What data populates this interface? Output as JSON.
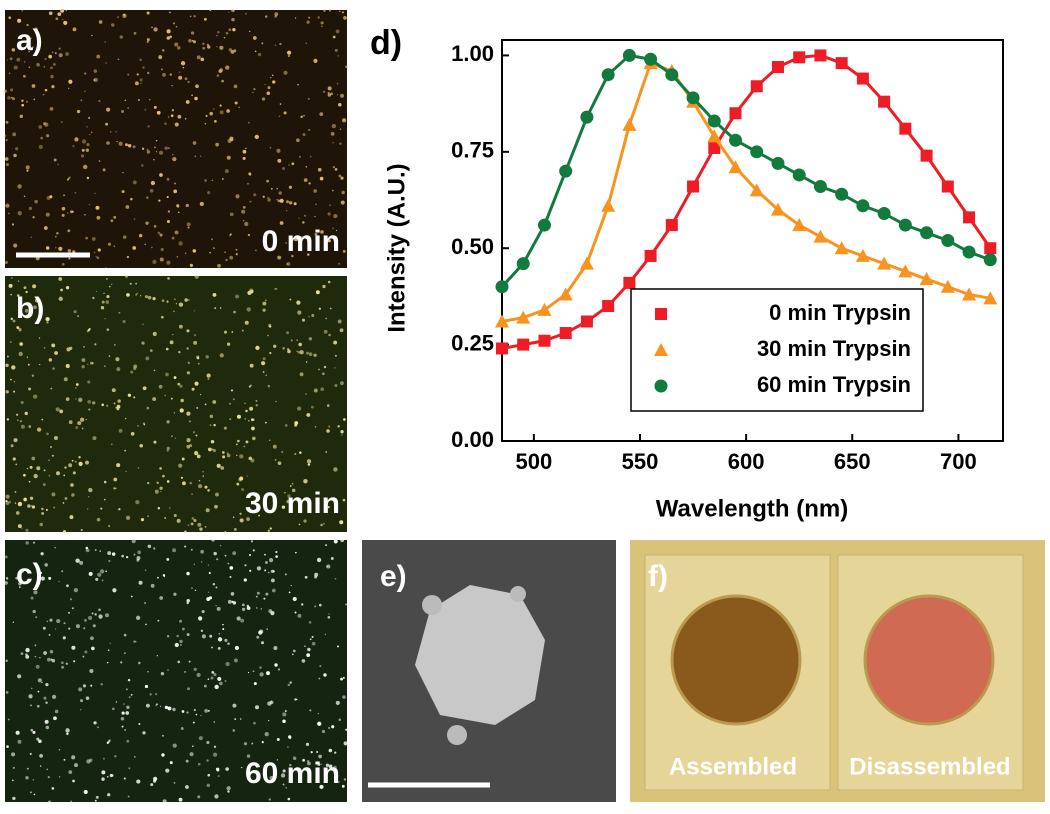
{
  "panels": {
    "a": {
      "label": "a)",
      "caption": "0 min"
    },
    "b": {
      "label": "b)",
      "caption": "30 min"
    },
    "c": {
      "label": "c)",
      "caption": "60 min"
    },
    "e": {
      "label": "e)"
    },
    "f": {
      "label": "f)",
      "left": "Assembled",
      "right": "Disassembled"
    }
  },
  "chart_data": {
    "type": "line",
    "panel_label": "d)",
    "x_label": "Wavelength (nm)",
    "y_label": "Intensity (A.U.)",
    "xlim": [
      485,
      721
    ],
    "ylim": [
      0,
      1.04
    ],
    "xticks": [
      500,
      550,
      600,
      650,
      700
    ],
    "yticks": [
      {
        "value": 0,
        "label": "0.00"
      },
      {
        "value": 0.25,
        "label": "0.25"
      },
      {
        "value": 0.5,
        "label": "0.50"
      },
      {
        "value": 0.75,
        "label": "0.75"
      },
      {
        "value": 1,
        "label": "1.00"
      }
    ],
    "legend": "lower right",
    "x": [
      485,
      495,
      505,
      515,
      525,
      535,
      545,
      555,
      565,
      575,
      585,
      595,
      605,
      615,
      625,
      635,
      645,
      655,
      665,
      675,
      685,
      695,
      705,
      715
    ],
    "series": [
      {
        "name": "0 min Trypsin",
        "color": "#ee1c25",
        "marker": "square",
        "values": [
          0.24,
          0.25,
          0.26,
          0.28,
          0.31,
          0.35,
          0.41,
          0.48,
          0.56,
          0.66,
          0.76,
          0.85,
          0.92,
          0.97,
          0.995,
          1.0,
          0.98,
          0.94,
          0.88,
          0.81,
          0.74,
          0.66,
          0.58,
          0.5
        ]
      },
      {
        "name": "30 min Trypsin",
        "color": "#f7931e",
        "marker": "triangle",
        "values": [
          0.31,
          0.32,
          0.34,
          0.38,
          0.46,
          0.61,
          0.82,
          0.98,
          0.96,
          0.88,
          0.79,
          0.71,
          0.65,
          0.6,
          0.56,
          0.53,
          0.5,
          0.48,
          0.46,
          0.44,
          0.42,
          0.4,
          0.38,
          0.37
        ]
      },
      {
        "name": "60 min Trypsin",
        "color": "#127a3c",
        "marker": "circle",
        "values": [
          0.4,
          0.46,
          0.56,
          0.7,
          0.84,
          0.95,
          1.0,
          0.99,
          0.95,
          0.89,
          0.83,
          0.78,
          0.75,
          0.72,
          0.69,
          0.66,
          0.64,
          0.61,
          0.59,
          0.56,
          0.54,
          0.52,
          0.49,
          0.47
        ]
      }
    ]
  }
}
